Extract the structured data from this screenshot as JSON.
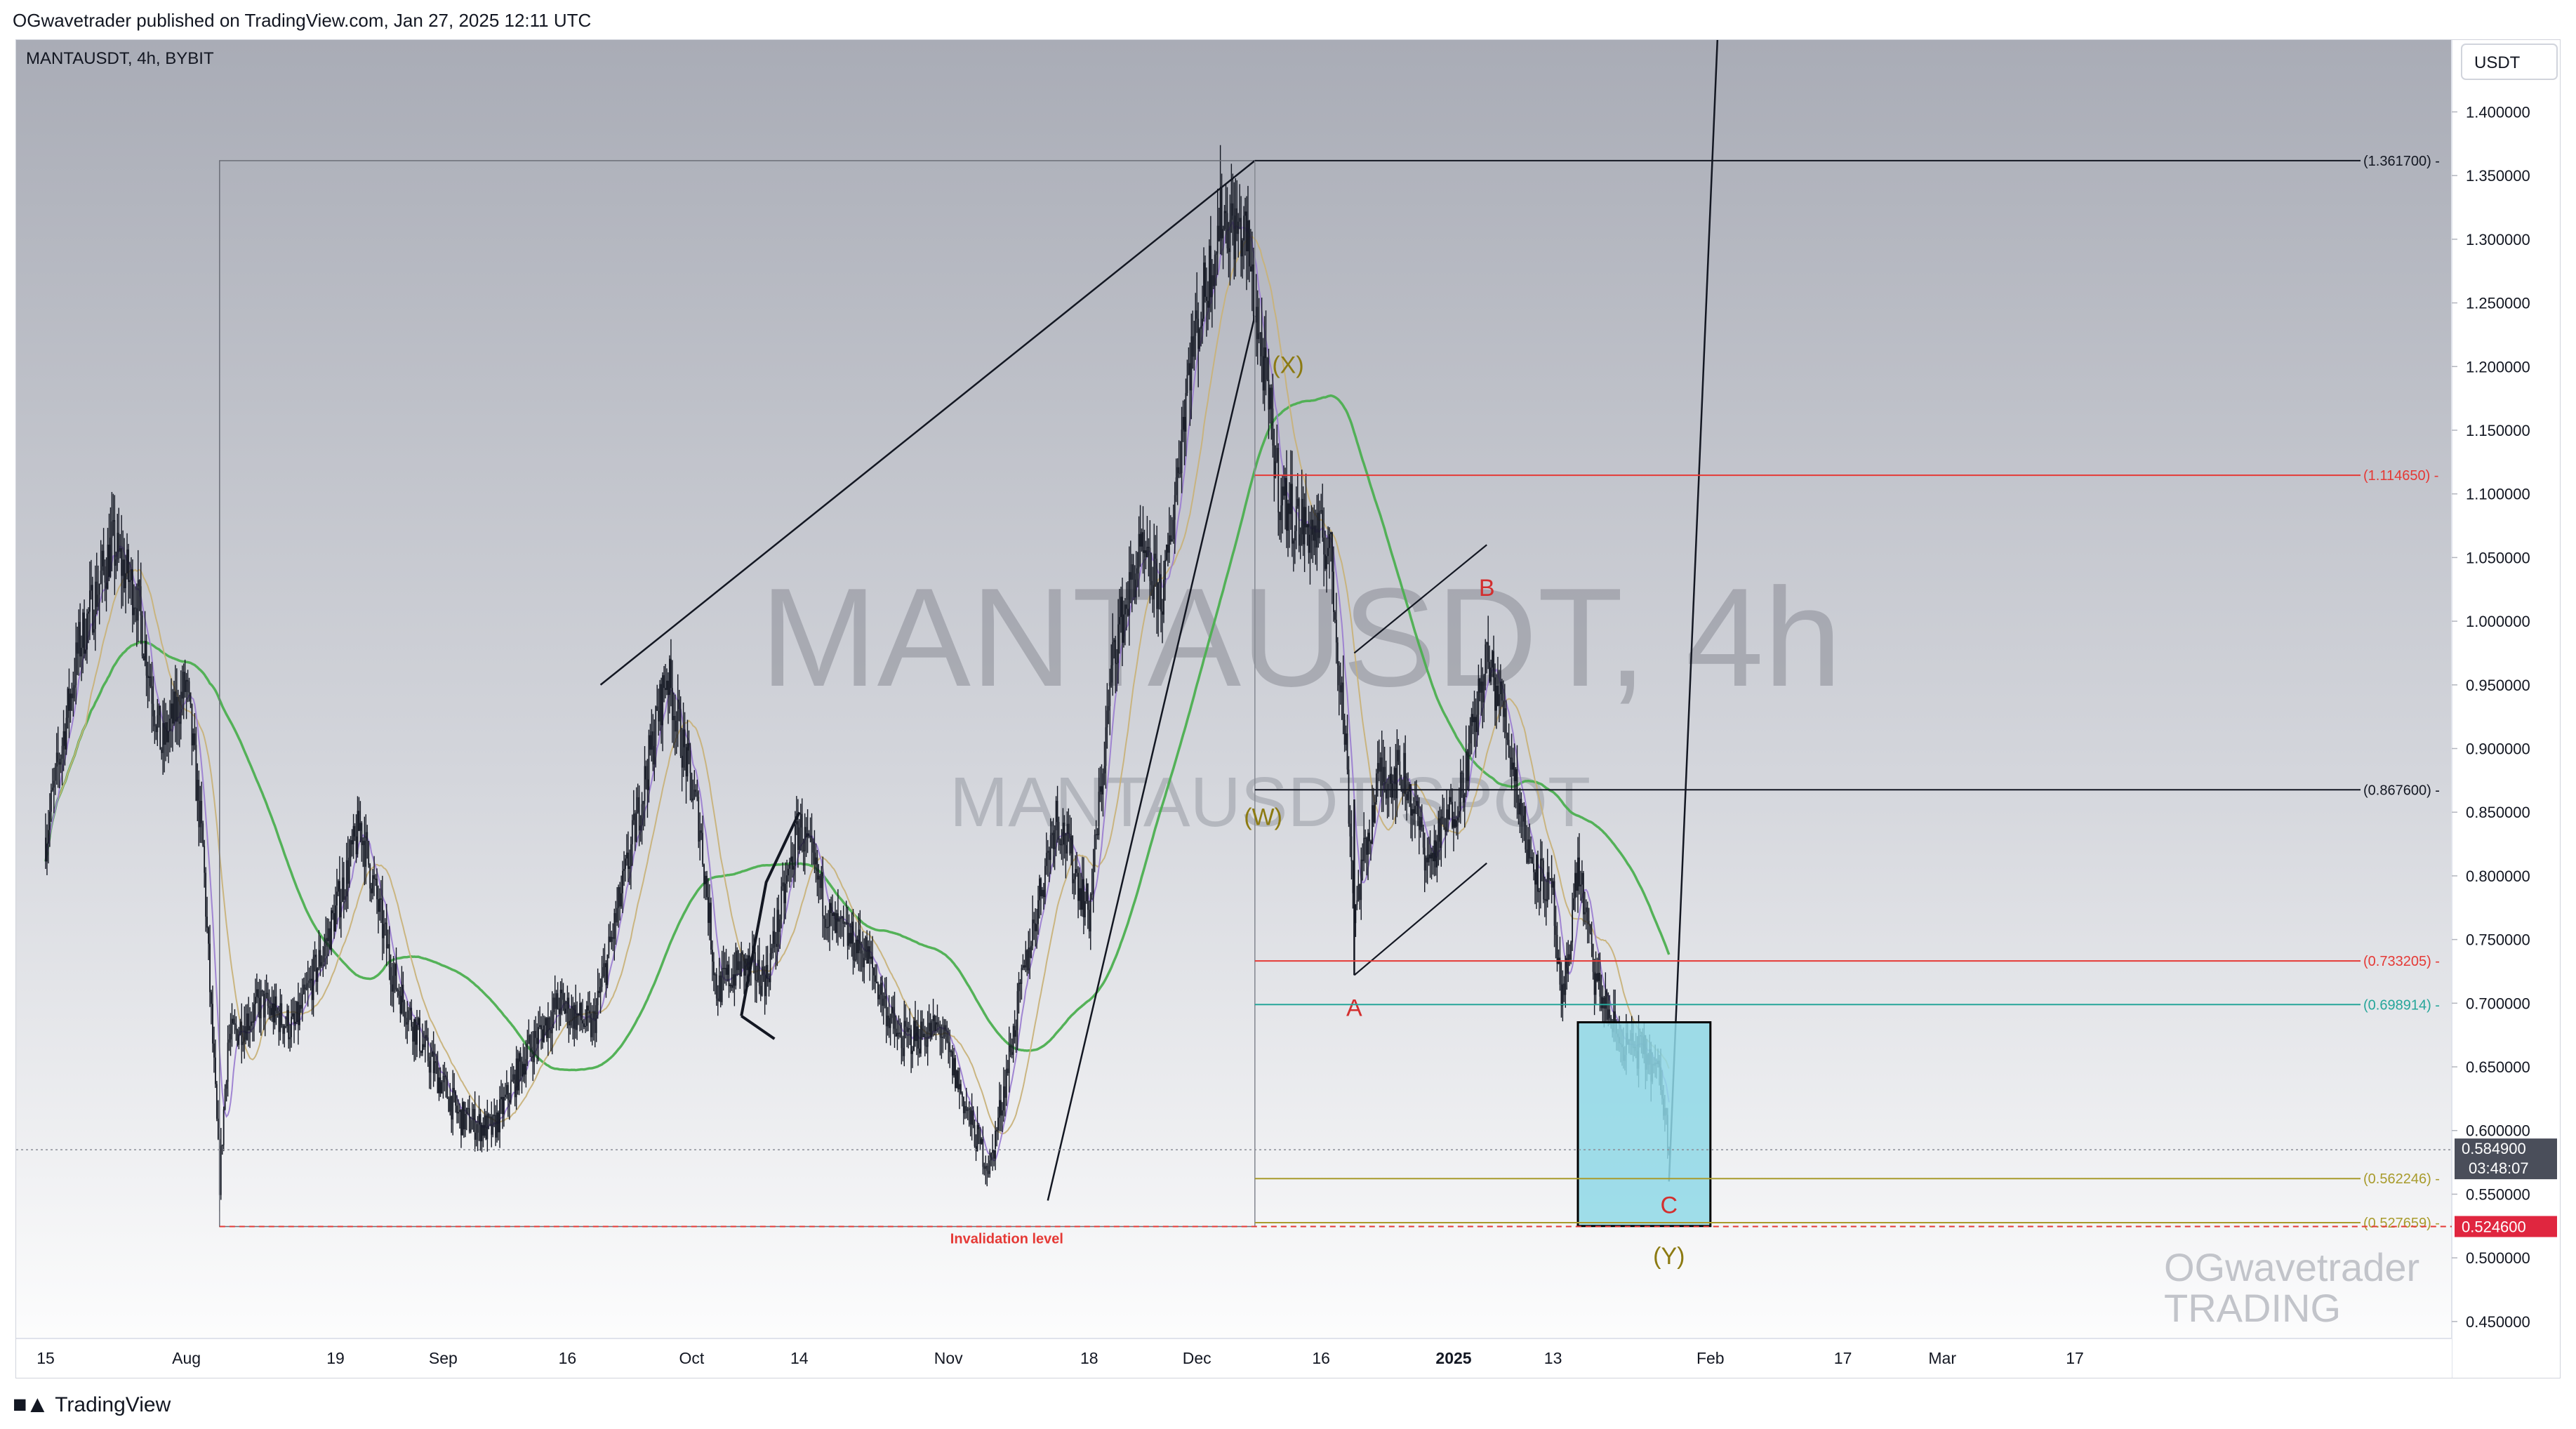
{
  "header": {
    "published_line": "OGwavetrader published on TradingView.com, Jan 27, 2025 12:11 UTC"
  },
  "chart_header": {
    "symbol_line": "MANTAUSDT, 4h, BYBIT",
    "currency_button": "USDT"
  },
  "watermark": {
    "main": "MANTAUSDT, 4h",
    "sub": "MANTAUSDT SPOT"
  },
  "author_watermark": {
    "line1": "OGwavetrader",
    "line2": "TRADING"
  },
  "footer": {
    "logo_text": "TradingView"
  },
  "colors": {
    "candle": "#131722",
    "ma_green": "#4caf50",
    "ma_tan": "#c8b27a",
    "ma_purple": "#9c7fd1",
    "fib_red": "#e53935",
    "fib_teal": "#26a69a",
    "fib_olive": "#a89b2c",
    "wave_olive": "#8c7a12",
    "wave_red": "#d32f2f",
    "target_box": "#8fd8e6",
    "price_label_bg": "#4a4e5a",
    "invalidation_bg": "#e0263f"
  },
  "chart_data": {
    "type": "candlestick",
    "symbol": "MANTAUSDT",
    "interval": "4h",
    "exchange": "BYBIT",
    "currency": "USDT",
    "ylim": [
      0.44,
      1.43
    ],
    "y_ticks": [
      "1.400000",
      "1.350000",
      "1.300000",
      "1.250000",
      "1.200000",
      "1.150000",
      "1.100000",
      "1.050000",
      "1.000000",
      "0.950000",
      "0.900000",
      "0.850000",
      "0.800000",
      "0.750000",
      "0.700000",
      "0.650000",
      "0.600000",
      "0.550000",
      "0.500000",
      "0.450000"
    ],
    "x_ticks": [
      {
        "label": "15",
        "date": "2024-07-15"
      },
      {
        "label": "Aug",
        "date": "2024-08-01"
      },
      {
        "label": "19",
        "date": "2024-08-19"
      },
      {
        "label": "Sep",
        "date": "2024-09-01"
      },
      {
        "label": "16",
        "date": "2024-09-16"
      },
      {
        "label": "Oct",
        "date": "2024-10-01"
      },
      {
        "label": "14",
        "date": "2024-10-14"
      },
      {
        "label": "Nov",
        "date": "2024-11-01"
      },
      {
        "label": "18",
        "date": "2024-11-18"
      },
      {
        "label": "Dec",
        "date": "2024-12-01"
      },
      {
        "label": "16",
        "date": "2024-12-16"
      },
      {
        "label": "2025",
        "date": "2025-01-01",
        "bold": true
      },
      {
        "label": "13",
        "date": "2025-01-13"
      },
      {
        "label": "Feb",
        "date": "2025-02-01"
      },
      {
        "label": "17",
        "date": "2025-02-17"
      },
      {
        "label": "Mar",
        "date": "2025-03-01"
      },
      {
        "label": "17",
        "date": "2025-03-17"
      }
    ],
    "price_path": [
      [
        "2024-07-15",
        0.83
      ],
      [
        "2024-07-19",
        0.98
      ],
      [
        "2024-07-23",
        1.06
      ],
      [
        "2024-07-26",
        1.02
      ],
      [
        "2024-07-29",
        0.9
      ],
      [
        "2024-08-01",
        0.95
      ],
      [
        "2024-08-03",
        0.82
      ],
      [
        "2024-08-05",
        0.56
      ],
      [
        "2024-08-06",
        0.67
      ],
      [
        "2024-08-10",
        0.7
      ],
      [
        "2024-08-14",
        0.68
      ],
      [
        "2024-08-18",
        0.75
      ],
      [
        "2024-08-22",
        0.84
      ],
      [
        "2024-08-26",
        0.72
      ],
      [
        "2024-08-30",
        0.66
      ],
      [
        "2024-09-03",
        0.61
      ],
      [
        "2024-09-07",
        0.6
      ],
      [
        "2024-09-11",
        0.66
      ],
      [
        "2024-09-15",
        0.7
      ],
      [
        "2024-09-19",
        0.68
      ],
      [
        "2024-09-23",
        0.8
      ],
      [
        "2024-09-28",
        0.96
      ],
      [
        "2024-10-02",
        0.84
      ],
      [
        "2024-10-04",
        0.71
      ],
      [
        "2024-10-07",
        0.73
      ],
      [
        "2024-10-10",
        0.72
      ],
      [
        "2024-10-14",
        0.84
      ],
      [
        "2024-10-18",
        0.76
      ],
      [
        "2024-10-22",
        0.74
      ],
      [
        "2024-10-26",
        0.67
      ],
      [
        "2024-10-31",
        0.68
      ],
      [
        "2024-11-04",
        0.6
      ],
      [
        "2024-11-06",
        0.57
      ],
      [
        "2024-11-10",
        0.72
      ],
      [
        "2024-11-14",
        0.85
      ],
      [
        "2024-11-18",
        0.77
      ],
      [
        "2024-11-21",
        0.98
      ],
      [
        "2024-11-24",
        1.05
      ],
      [
        "2024-11-27",
        1.02
      ],
      [
        "2024-11-30",
        1.2
      ],
      [
        "2024-12-04",
        1.32
      ],
      [
        "2024-12-07",
        1.3
      ],
      [
        "2024-12-09",
        1.2
      ],
      [
        "2024-12-11",
        1.1
      ],
      [
        "2024-12-13",
        1.08
      ],
      [
        "2024-12-17",
        1.06
      ],
      [
        "2024-12-19",
        0.9
      ],
      [
        "2024-12-20",
        0.77
      ],
      [
        "2024-12-23",
        0.88
      ],
      [
        "2024-12-26",
        0.88
      ],
      [
        "2024-12-29",
        0.81
      ],
      [
        "2025-01-02",
        0.87
      ],
      [
        "2025-01-05",
        0.97
      ],
      [
        "2025-01-07",
        0.93
      ],
      [
        "2025-01-10",
        0.82
      ],
      [
        "2025-01-13",
        0.78
      ],
      [
        "2025-01-14",
        0.69
      ],
      [
        "2025-01-16",
        0.81
      ],
      [
        "2025-01-18",
        0.72
      ],
      [
        "2025-01-21",
        0.67
      ],
      [
        "2025-01-24",
        0.66
      ],
      [
        "2025-01-26",
        0.64
      ],
      [
        "2025-01-27",
        0.585
      ]
    ],
    "current_price": {
      "value": "0.584900",
      "countdown": "03:48:07"
    },
    "horizontal_levels": [
      {
        "label": "(1.361700)",
        "value": 1.3617,
        "color": "black"
      },
      {
        "label": "(1.114650)",
        "value": 1.11465,
        "color": "red"
      },
      {
        "label": "(0.867600)",
        "value": 0.8676,
        "color": "black"
      },
      {
        "label": "(0.733205)",
        "value": 0.733205,
        "color": "red"
      },
      {
        "label": "(0.698914)",
        "value": 0.698914,
        "color": "teal"
      },
      {
        "label": "(0.562246)",
        "value": 0.562246,
        "color": "olive"
      },
      {
        "label": "(0.527659)",
        "value": 0.527659,
        "color": "olive"
      }
    ],
    "invalidation": {
      "label": "Invalidation level",
      "value": 0.5246,
      "price_label": "0.524600"
    },
    "wave_labels": [
      {
        "text": "(W)",
        "date": "2024-12-09",
        "value": 0.84,
        "color": "olive"
      },
      {
        "text": "(X)",
        "date": "2024-12-12",
        "value": 1.195,
        "color": "olive"
      },
      {
        "text": "A",
        "date": "2024-12-20",
        "value": 0.69,
        "color": "red"
      },
      {
        "text": "B",
        "date": "2025-01-05",
        "value": 1.02,
        "color": "red"
      },
      {
        "text": "C",
        "date": "2025-01-27",
        "value": 0.535,
        "color": "red"
      },
      {
        "text": "(Y)",
        "date": "2025-01-27",
        "value": 0.495,
        "color": "olive"
      }
    ],
    "target_zone": {
      "from": "2025-01-16",
      "to": "2025-02-01",
      "top": 0.685,
      "bottom": 0.525
    },
    "moving_averages": [
      "green (long)",
      "tan (medium)",
      "purple (short)"
    ],
    "grid": false,
    "background": "gradient grey"
  }
}
